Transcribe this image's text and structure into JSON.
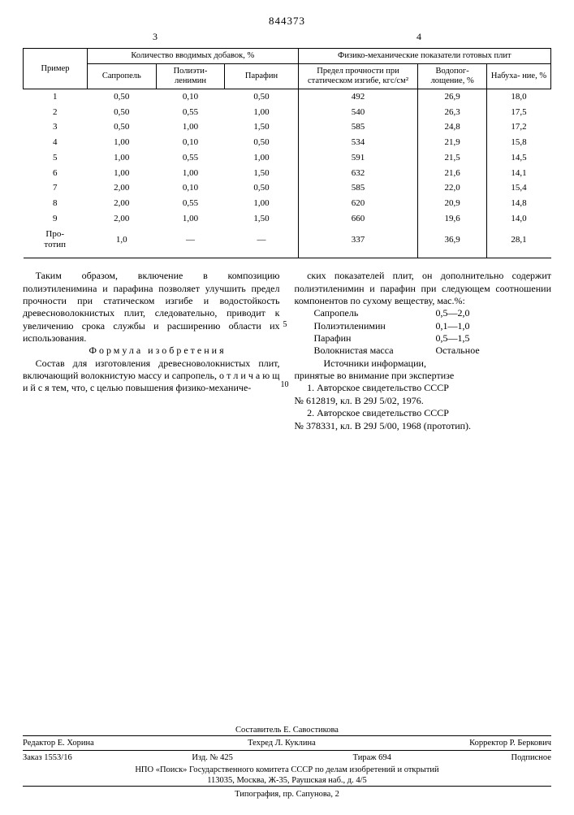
{
  "docnum": "844373",
  "page_left": "3",
  "page_right": "4",
  "table": {
    "head_example": "Пример",
    "head_additives_group": "Количество вводимых добавок, %",
    "head_props_group": "Физико-механические показатели готовых плит",
    "head_sapropel": "Сапропель",
    "head_pei": "Полиэти-\nленимин",
    "head_paraffin": "Парафин",
    "head_strength": "Предел прочности при статическом изгибе, кгс/см²",
    "head_water": "Водопог-\nлощение, %",
    "head_swell": "Набуха-\nние, %",
    "rows": [
      {
        "n": "1",
        "s": "0,50",
        "p": "0,10",
        "f": "0,50",
        "str": "492",
        "w": "26,9",
        "sw": "18,0"
      },
      {
        "n": "2",
        "s": "0,50",
        "p": "0,55",
        "f": "1,00",
        "str": "540",
        "w": "26,3",
        "sw": "17,5"
      },
      {
        "n": "3",
        "s": "0,50",
        "p": "1,00",
        "f": "1,50",
        "str": "585",
        "w": "24,8",
        "sw": "17,2"
      },
      {
        "n": "4",
        "s": "1,00",
        "p": "0,10",
        "f": "0,50",
        "str": "534",
        "w": "21,9",
        "sw": "15,8"
      },
      {
        "n": "5",
        "s": "1,00",
        "p": "0,55",
        "f": "1,00",
        "str": "591",
        "w": "21,5",
        "sw": "14,5"
      },
      {
        "n": "6",
        "s": "1,00",
        "p": "1,00",
        "f": "1,50",
        "str": "632",
        "w": "21,6",
        "sw": "14,1"
      },
      {
        "n": "7",
        "s": "2,00",
        "p": "0,10",
        "f": "0,50",
        "str": "585",
        "w": "22,0",
        "sw": "15,4"
      },
      {
        "n": "8",
        "s": "2,00",
        "p": "0,55",
        "f": "1,00",
        "str": "620",
        "w": "20,9",
        "sw": "14,8"
      },
      {
        "n": "9",
        "s": "2,00",
        "p": "1,00",
        "f": "1,50",
        "str": "660",
        "w": "19,6",
        "sw": "14,0"
      },
      {
        "n": "Про-\nтотип",
        "s": "1,0",
        "p": "—",
        "f": "—",
        "str": "337",
        "w": "36,9",
        "sw": "28,1"
      }
    ]
  },
  "left_col": {
    "p1": "Таким образом, включение в композицию полиэтиленимина и парафина позволяет улучшить предел прочности при статическом изгибе и водостойкость древесноволокнистых плит, следовательно, приводит к увеличению срока службы и расширению области их использования.",
    "formula_head": "Формула изобретения",
    "p2": "Состав для изготовления древесноволокнистых плит, включающий волокнистую массу и сапропель, о т л и ч а ю щ и й с я тем, что, с целью повышения физико-механиче-"
  },
  "right_col": {
    "p1": "ских показателей плит, он дополнительно содержит полиэтиленимин и парафин при следующем соотношении компонентов по сухому веществу, мас.%:",
    "ratios": [
      {
        "lab": "Сапропель",
        "val": "0,5—2,0"
      },
      {
        "lab": "Полиэтиленимин",
        "val": "0,1—1,0"
      },
      {
        "lab": "Парафин",
        "val": "0,5—1,5"
      },
      {
        "lab": "Волокнистая масса",
        "val": "Остальное"
      }
    ],
    "src_head": "Источники информации,",
    "src_head2": "принятые во внимание при экспертизе",
    "src1a": "1. Авторское   свидетельство   СССР",
    "src1b": "№ 612819, кл. В 29J 5/02, 1976.",
    "src2a": "2. Авторское   свидетельство   СССР",
    "src2b": "№ 378331, кл. В 29J 5/00, 1968 (прототип).",
    "lineno5": "5",
    "lineno10": "10"
  },
  "footer": {
    "composer": "Составитель Е. Савостикова",
    "editor": "Редактор Е. Хорина",
    "techred": "Техред Л. Куклина",
    "corrector": "Корректор Р. Беркович",
    "order": "Заказ 1553/16",
    "izd": "Изд. № 425",
    "tirazh": "Тираж 694",
    "sub": "Подписное",
    "npo": "НПО «Поиск» Государственного комитета СССР по делам изобретений и открытий",
    "addr": "113035, Москва, Ж-35, Раушская наб., д. 4/5",
    "typ": "Типография, пр. Сапунова, 2"
  }
}
